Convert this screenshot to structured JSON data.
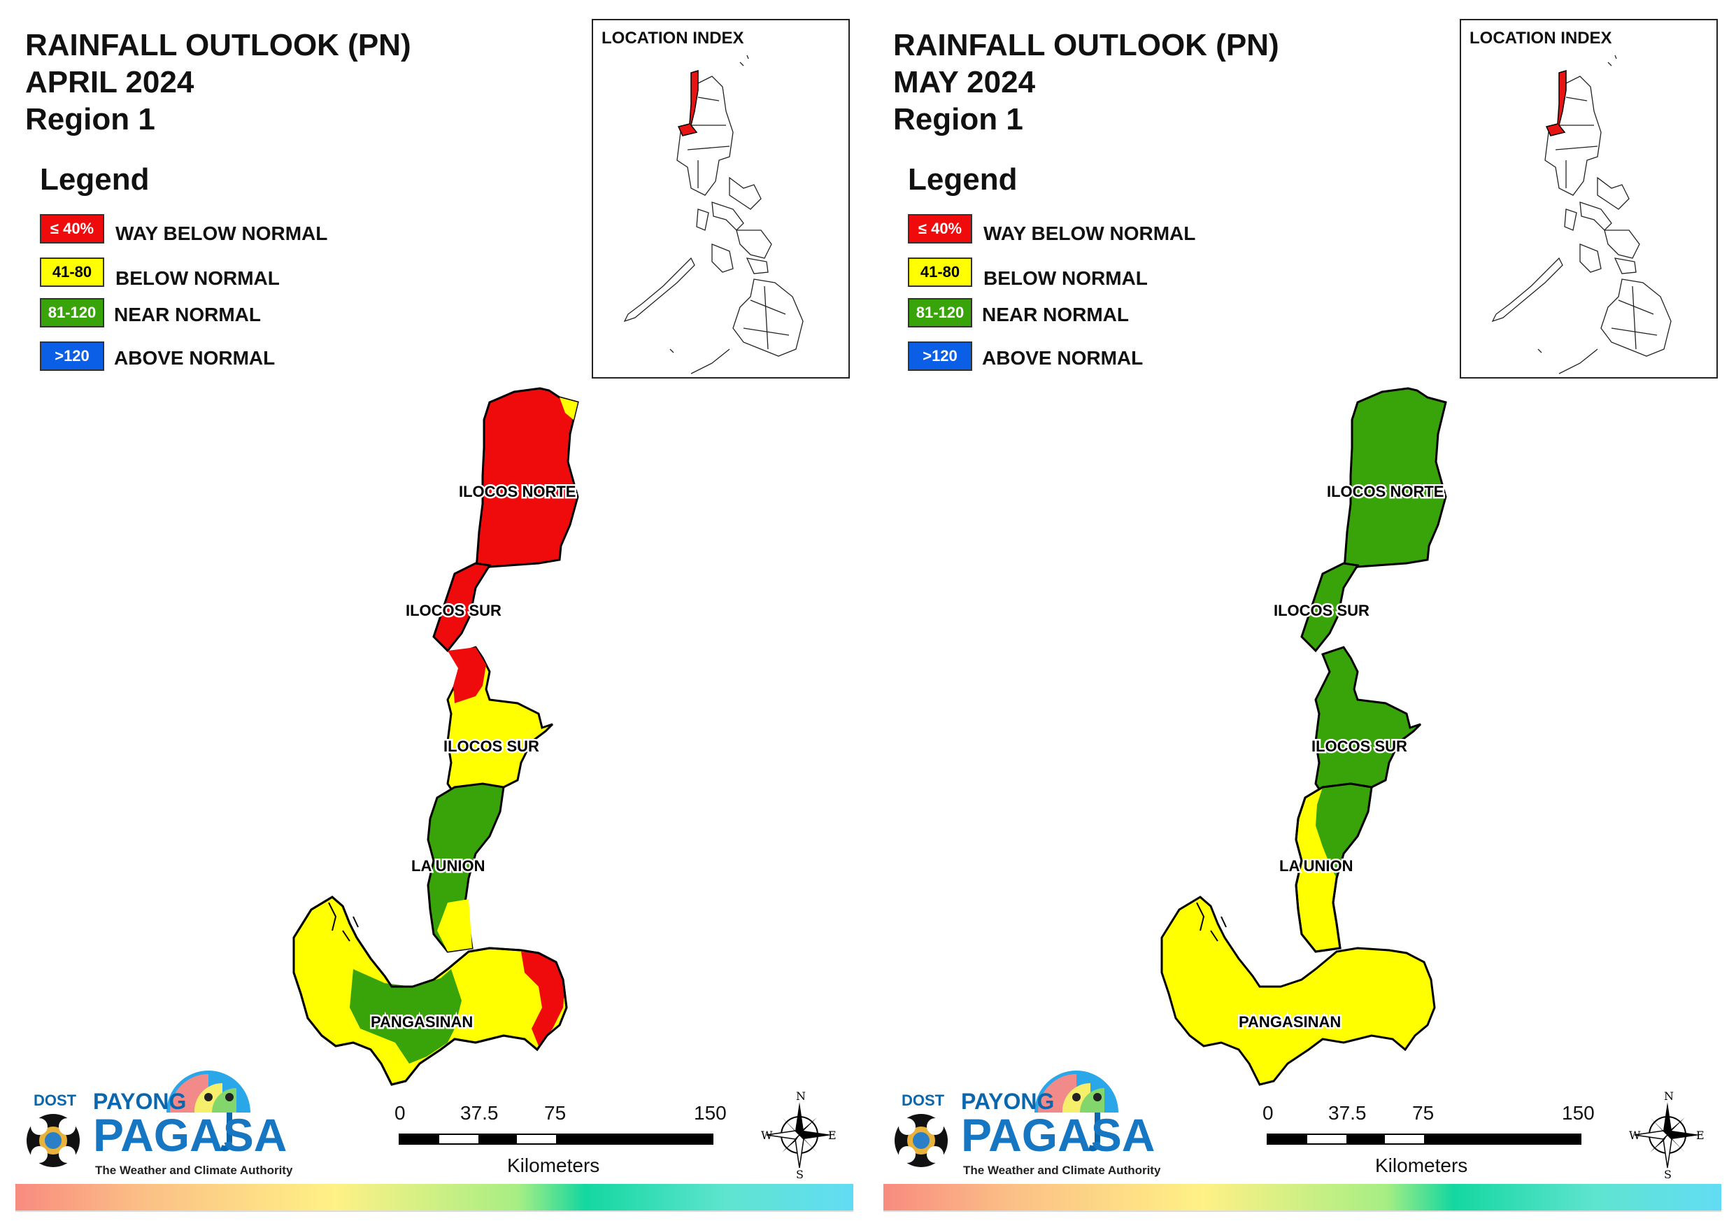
{
  "colors": {
    "way_below": "#ef0b0b",
    "below": "#ffff00",
    "near": "#38a40a",
    "above": "#0a5fe6"
  },
  "panels": [
    {
      "title_line1": "RAINFALL OUTLOOK (PN)",
      "title_line2": "APRIL 2024",
      "title_line3": "Region 1",
      "provinces": {
        "ilocos_norte": "ILOCOS NORTE",
        "ilocos_sur_north": "ILOCOS SUR",
        "ilocos_sur_south": "ILOCOS SUR",
        "la_union": "LA UNION",
        "pangasinan": "PANGASINAN"
      }
    },
    {
      "title_line1": "RAINFALL OUTLOOK (PN)",
      "title_line2": "MAY 2024",
      "title_line3": "Region 1",
      "provinces": {
        "ilocos_norte": "ILOCOS NORTE",
        "ilocos_sur_north": "ILOCOS SUR",
        "ilocos_sur_south": "ILOCOS SUR",
        "la_union": "LA UNION",
        "pangasinan": "PANGASINAN"
      }
    }
  ],
  "legend": {
    "title": "Legend",
    "items": [
      {
        "range": "≤ 40%",
        "label": "WAY BELOW NORMAL"
      },
      {
        "range": "41-80",
        "label": "BELOW NORMAL"
      },
      {
        "range": "81-120",
        "label": "NEAR NORMAL"
      },
      {
        "range": ">120",
        "label": "ABOVE NORMAL"
      }
    ]
  },
  "inset": {
    "label": "LOCATION INDEX"
  },
  "scale": {
    "ticks": [
      "0",
      "37.5",
      "75",
      "150"
    ],
    "unit": "Kilometers"
  },
  "compass": {
    "n": "N",
    "s": "S",
    "e": "E",
    "w": "W"
  },
  "logo": {
    "dost": "DOST",
    "payong": "PAYONG",
    "pagasa": "PAGASA",
    "tagline": "The Weather and Climate Authority"
  }
}
